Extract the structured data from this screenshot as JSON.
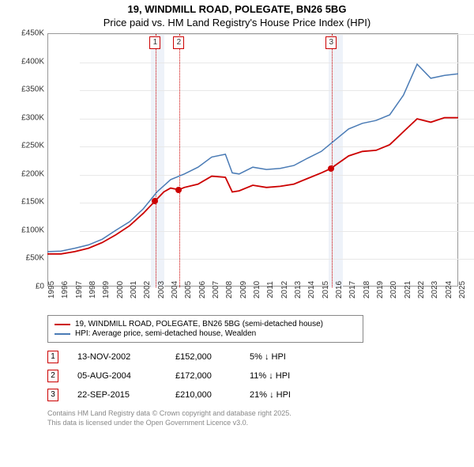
{
  "title_line1": "19, WINDMILL ROAD, POLEGATE, BN26 5BG",
  "title_line2": "Price paid vs. HM Land Registry's House Price Index (HPI)",
  "colors": {
    "price_paid": "#cc0000",
    "hpi": "#4a7bb5",
    "band": "#eef2f9",
    "grid": "#e8e8e8",
    "text": "#333333",
    "footer": "#888888"
  },
  "chart": {
    "type": "line",
    "ylim": [
      0,
      450000
    ],
    "ytick_step": 50000,
    "yticks": [
      "£0",
      "£50K",
      "£100K",
      "£150K",
      "£200K",
      "£250K",
      "£300K",
      "£350K",
      "£400K",
      "£450K"
    ],
    "xlim": [
      1995,
      2025
    ],
    "xticks": [
      1995,
      1996,
      1997,
      1998,
      1999,
      2000,
      2001,
      2002,
      2003,
      2004,
      2005,
      2006,
      2007,
      2008,
      2009,
      2010,
      2011,
      2012,
      2013,
      2014,
      2015,
      2016,
      2017,
      2018,
      2019,
      2020,
      2021,
      2022,
      2023,
      2024,
      2025
    ],
    "bands": [
      {
        "start": 2002.5,
        "end": 2003.5
      },
      {
        "start": 2015.5,
        "end": 2016.5
      }
    ],
    "markers": [
      {
        "num": "1",
        "year": 2002.87,
        "price": 152000
      },
      {
        "num": "2",
        "year": 2004.6,
        "price": 172000
      },
      {
        "num": "3",
        "year": 2015.73,
        "price": 210000
      }
    ],
    "series": {
      "price_paid": [
        [
          1995,
          58000
        ],
        [
          1996,
          58000
        ],
        [
          1997,
          62000
        ],
        [
          1998,
          68000
        ],
        [
          1999,
          78000
        ],
        [
          2000,
          92000
        ],
        [
          2001,
          108000
        ],
        [
          2002,
          130000
        ],
        [
          2002.87,
          152000
        ],
        [
          2003.5,
          168000
        ],
        [
          2004,
          175000
        ],
        [
          2004.6,
          172000
        ],
        [
          2005,
          176000
        ],
        [
          2006,
          182000
        ],
        [
          2007,
          196000
        ],
        [
          2008,
          194000
        ],
        [
          2008.5,
          168000
        ],
        [
          2009,
          170000
        ],
        [
          2010,
          180000
        ],
        [
          2011,
          176000
        ],
        [
          2012,
          178000
        ],
        [
          2013,
          182000
        ],
        [
          2014,
          192000
        ],
        [
          2015,
          202000
        ],
        [
          2015.73,
          210000
        ],
        [
          2016,
          215000
        ],
        [
          2017,
          232000
        ],
        [
          2018,
          240000
        ],
        [
          2019,
          242000
        ],
        [
          2020,
          252000
        ],
        [
          2021,
          275000
        ],
        [
          2022,
          298000
        ],
        [
          2023,
          292000
        ],
        [
          2024,
          300000
        ],
        [
          2025,
          300000
        ]
      ],
      "hpi": [
        [
          1995,
          62000
        ],
        [
          1996,
          63000
        ],
        [
          1997,
          68000
        ],
        [
          1998,
          74000
        ],
        [
          1999,
          84000
        ],
        [
          2000,
          100000
        ],
        [
          2001,
          115000
        ],
        [
          2002,
          138000
        ],
        [
          2003,
          168000
        ],
        [
          2004,
          190000
        ],
        [
          2005,
          200000
        ],
        [
          2006,
          212000
        ],
        [
          2007,
          230000
        ],
        [
          2008,
          235000
        ],
        [
          2008.5,
          202000
        ],
        [
          2009,
          200000
        ],
        [
          2010,
          212000
        ],
        [
          2011,
          208000
        ],
        [
          2012,
          210000
        ],
        [
          2013,
          215000
        ],
        [
          2014,
          228000
        ],
        [
          2015,
          240000
        ],
        [
          2016,
          260000
        ],
        [
          2017,
          280000
        ],
        [
          2018,
          290000
        ],
        [
          2019,
          295000
        ],
        [
          2020,
          305000
        ],
        [
          2021,
          340000
        ],
        [
          2022,
          395000
        ],
        [
          2023,
          370000
        ],
        [
          2024,
          375000
        ],
        [
          2025,
          378000
        ]
      ]
    }
  },
  "legend": [
    {
      "color": "#cc0000",
      "label": "19, WINDMILL ROAD, POLEGATE, BN26 5BG (semi-detached house)"
    },
    {
      "color": "#4a7bb5",
      "label": "HPI: Average price, semi-detached house, Wealden"
    }
  ],
  "sales": [
    {
      "num": "1",
      "date": "13-NOV-2002",
      "price": "£152,000",
      "diff": "5% ↓ HPI"
    },
    {
      "num": "2",
      "date": "05-AUG-2004",
      "price": "£172,000",
      "diff": "11% ↓ HPI"
    },
    {
      "num": "3",
      "date": "22-SEP-2015",
      "price": "£210,000",
      "diff": "21% ↓ HPI"
    }
  ],
  "footer_line1": "Contains HM Land Registry data © Crown copyright and database right 2025.",
  "footer_line2": "This data is licensed under the Open Government Licence v3.0."
}
